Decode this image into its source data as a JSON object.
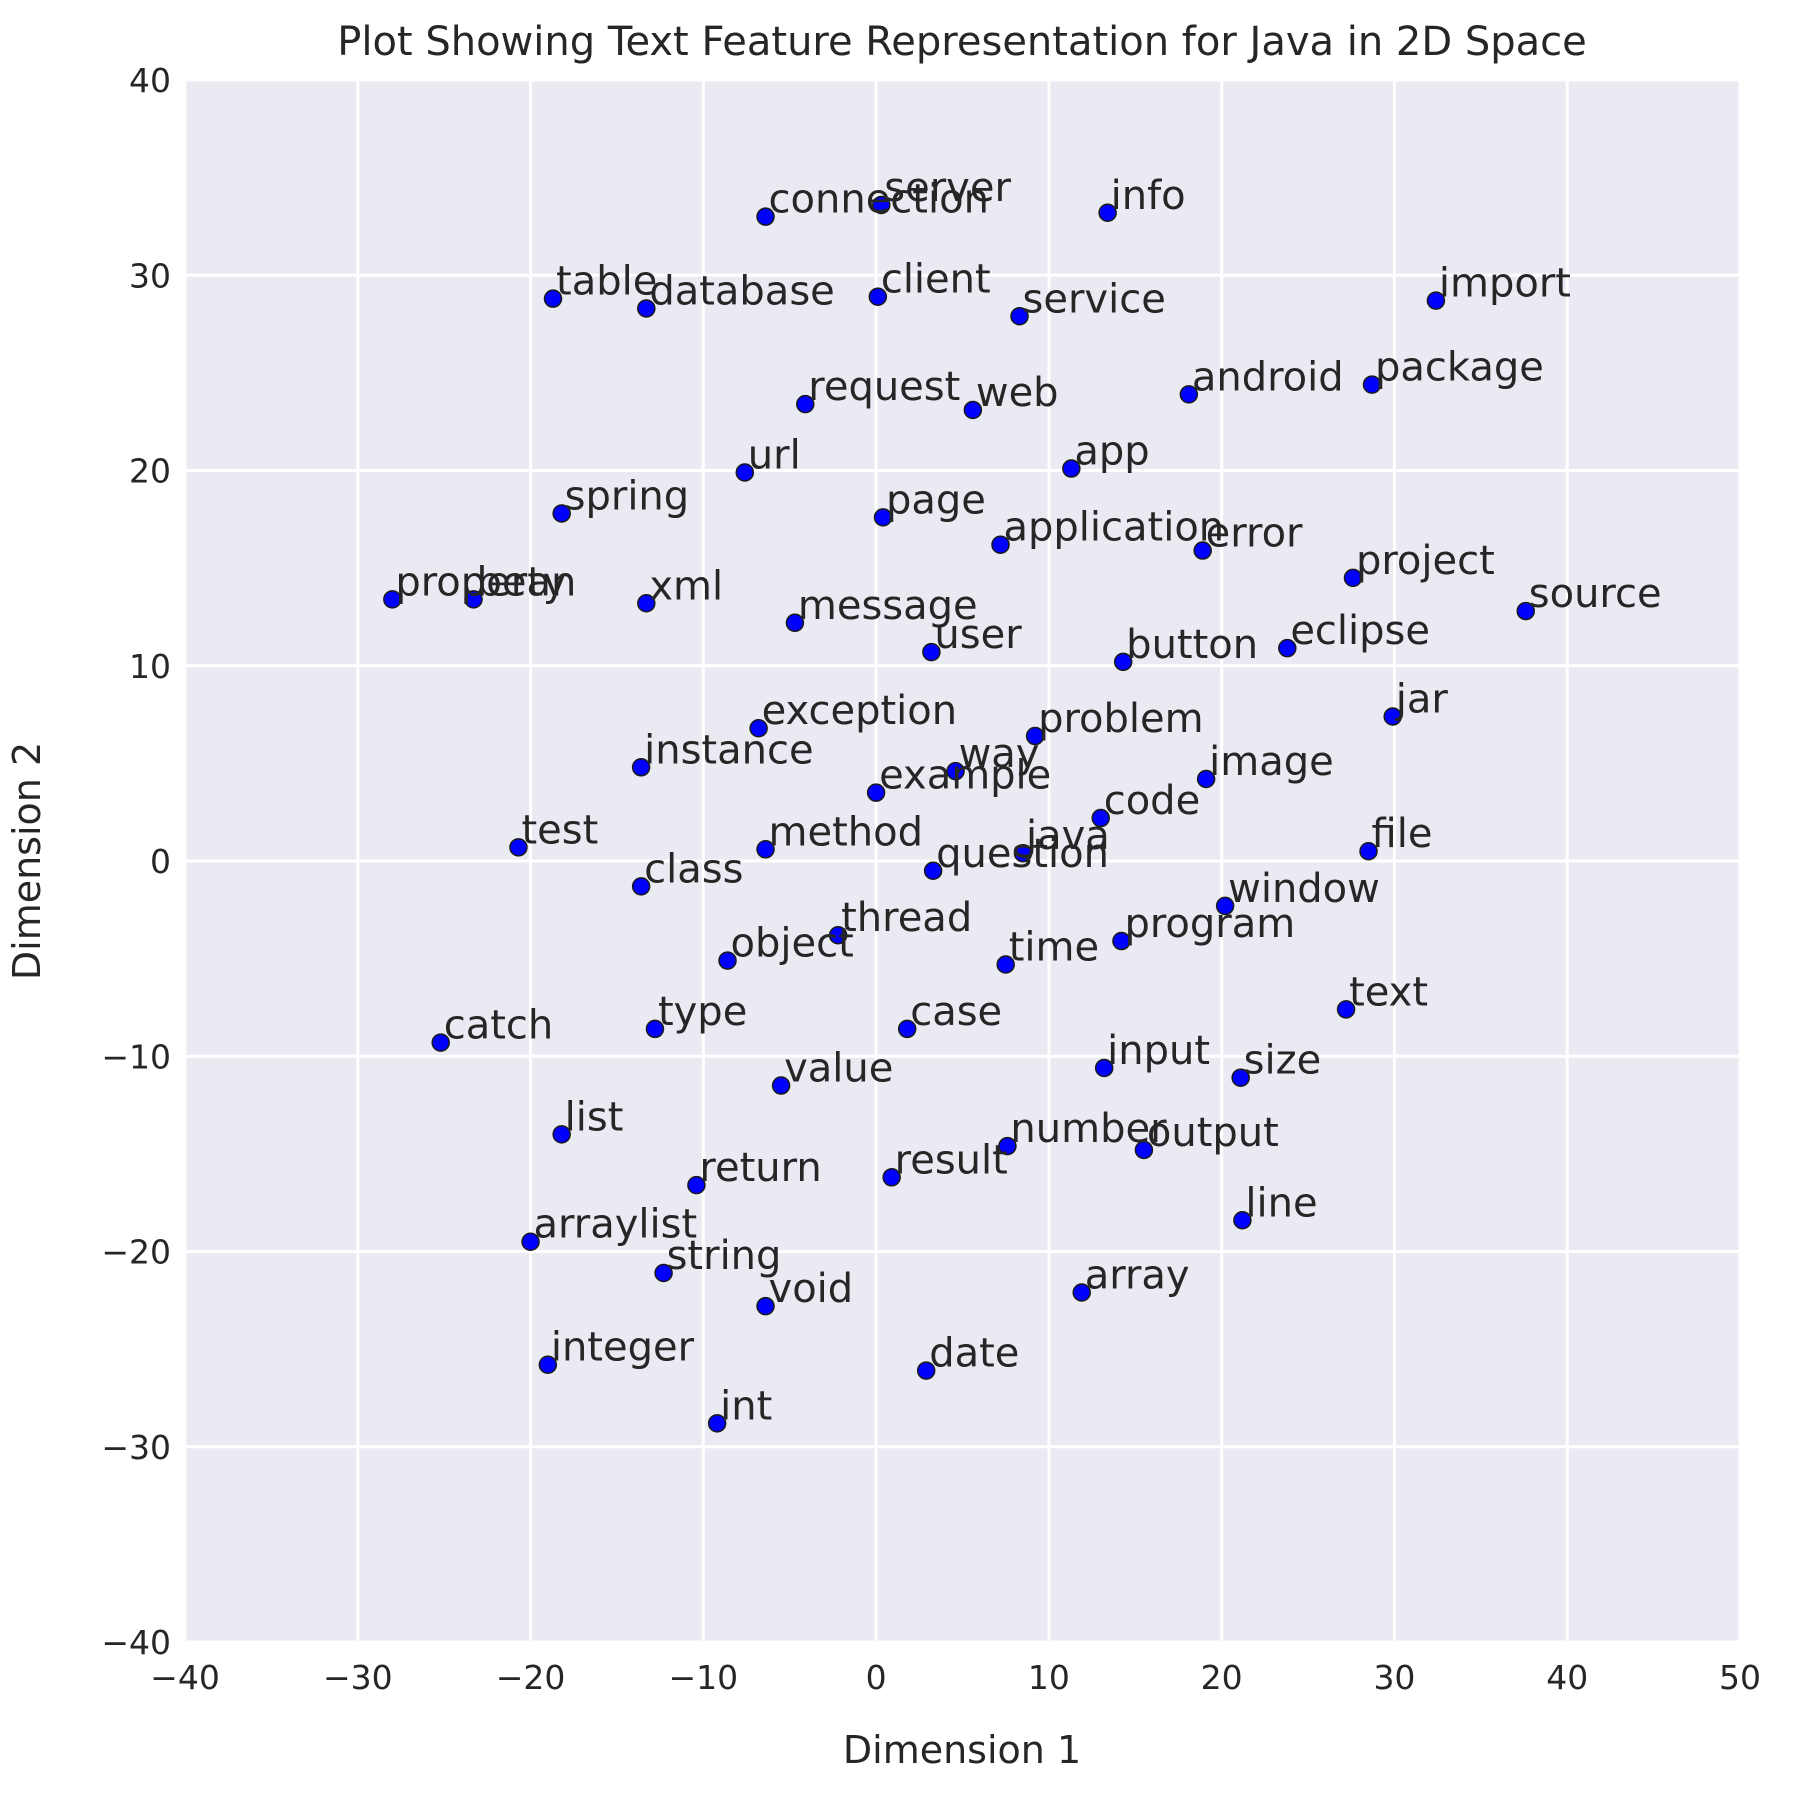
{
  "chart_data": {
    "type": "scatter",
    "title": "Plot Showing Text Feature Representation for Java in 2D Space",
    "xlabel": "Dimension 1",
    "ylabel": "Dimension 2",
    "xlim": [
      -40,
      50
    ],
    "ylim": [
      -40,
      40
    ],
    "xticks": [
      -40,
      -30,
      -20,
      -10,
      0,
      10,
      20,
      30,
      40,
      50
    ],
    "yticks": [
      -40,
      -30,
      -20,
      -10,
      0,
      10,
      20,
      30,
      40
    ],
    "grid": true,
    "point_color": "#0000ff",
    "background_color": "#eaeaf2",
    "points": [
      {
        "label": "server",
        "x": 0.3,
        "y": 33.6
      },
      {
        "label": "connection",
        "x": -6.4,
        "y": 33.0
      },
      {
        "label": "info",
        "x": 13.4,
        "y": 33.2
      },
      {
        "label": "table",
        "x": -18.7,
        "y": 28.8
      },
      {
        "label": "database",
        "x": -13.3,
        "y": 28.3
      },
      {
        "label": "client",
        "x": 0.1,
        "y": 28.9
      },
      {
        "label": "service",
        "x": 8.3,
        "y": 27.9
      },
      {
        "label": "import",
        "x": 32.4,
        "y": 28.7
      },
      {
        "label": "request",
        "x": -4.1,
        "y": 23.4
      },
      {
        "label": "web",
        "x": 5.6,
        "y": 23.1
      },
      {
        "label": "android",
        "x": 18.1,
        "y": 23.9
      },
      {
        "label": "package",
        "x": 28.7,
        "y": 24.4
      },
      {
        "label": "url",
        "x": -7.6,
        "y": 19.9
      },
      {
        "label": "app",
        "x": 11.3,
        "y": 20.1
      },
      {
        "label": "spring",
        "x": -18.2,
        "y": 17.8
      },
      {
        "label": "page",
        "x": 0.4,
        "y": 17.6
      },
      {
        "label": "application",
        "x": 7.2,
        "y": 16.2
      },
      {
        "label": "error",
        "x": 18.9,
        "y": 15.9
      },
      {
        "label": "project",
        "x": 27.6,
        "y": 14.5
      },
      {
        "label": "source",
        "x": 37.6,
        "y": 12.8
      },
      {
        "label": "property",
        "x": -28.0,
        "y": 13.4
      },
      {
        "label": "bean",
        "x": -23.3,
        "y": 13.4
      },
      {
        "label": "xml",
        "x": -13.3,
        "y": 13.2
      },
      {
        "label": "message",
        "x": -4.7,
        "y": 12.2
      },
      {
        "label": "user",
        "x": 3.2,
        "y": 10.7
      },
      {
        "label": "button",
        "x": 14.3,
        "y": 10.2
      },
      {
        "label": "eclipse",
        "x": 23.8,
        "y": 10.9
      },
      {
        "label": "jar",
        "x": 29.9,
        "y": 7.4
      },
      {
        "label": "exception",
        "x": -6.8,
        "y": 6.8
      },
      {
        "label": "problem",
        "x": 9.2,
        "y": 6.4
      },
      {
        "label": "instance",
        "x": -13.6,
        "y": 4.8
      },
      {
        "label": "way",
        "x": 4.6,
        "y": 4.6
      },
      {
        "label": "example",
        "x": 0.0,
        "y": 3.5
      },
      {
        "label": "image",
        "x": 19.1,
        "y": 4.2
      },
      {
        "label": "code",
        "x": 13.0,
        "y": 2.2
      },
      {
        "label": "test",
        "x": -20.7,
        "y": 0.7
      },
      {
        "label": "method",
        "x": -6.4,
        "y": 0.6
      },
      {
        "label": "java",
        "x": 8.5,
        "y": 0.4
      },
      {
        "label": "file",
        "x": 28.5,
        "y": 0.5
      },
      {
        "label": "class",
        "x": -13.6,
        "y": -1.3
      },
      {
        "label": "question",
        "x": 3.3,
        "y": -0.5
      },
      {
        "label": "window",
        "x": 20.2,
        "y": -2.3
      },
      {
        "label": "thread",
        "x": -2.2,
        "y": -3.8
      },
      {
        "label": "program",
        "x": 14.2,
        "y": -4.1
      },
      {
        "label": "object",
        "x": -8.6,
        "y": -5.1
      },
      {
        "label": "time",
        "x": 7.5,
        "y": -5.3
      },
      {
        "label": "text",
        "x": 27.2,
        "y": -7.6
      },
      {
        "label": "catch",
        "x": -25.2,
        "y": -9.3
      },
      {
        "label": "type",
        "x": -12.8,
        "y": -8.6
      },
      {
        "label": "case",
        "x": 1.8,
        "y": -8.6
      },
      {
        "label": "input",
        "x": 13.2,
        "y": -10.6
      },
      {
        "label": "size",
        "x": 21.1,
        "y": -11.1
      },
      {
        "label": "value",
        "x": -5.5,
        "y": -11.5
      },
      {
        "label": "list",
        "x": -18.2,
        "y": -14.0
      },
      {
        "label": "number",
        "x": 7.6,
        "y": -14.6
      },
      {
        "label": "output",
        "x": 15.5,
        "y": -14.8
      },
      {
        "label": "return",
        "x": -10.4,
        "y": -16.6
      },
      {
        "label": "result",
        "x": 0.9,
        "y": -16.2
      },
      {
        "label": "line",
        "x": 21.2,
        "y": -18.4
      },
      {
        "label": "arraylist",
        "x": -20.0,
        "y": -19.5
      },
      {
        "label": "string",
        "x": -12.3,
        "y": -21.1
      },
      {
        "label": "void",
        "x": -6.4,
        "y": -22.8
      },
      {
        "label": "array",
        "x": 11.9,
        "y": -22.1
      },
      {
        "label": "integer",
        "x": -19.0,
        "y": -25.8
      },
      {
        "label": "date",
        "x": 2.9,
        "y": -26.1
      },
      {
        "label": "int",
        "x": -9.2,
        "y": -28.8
      }
    ]
  }
}
